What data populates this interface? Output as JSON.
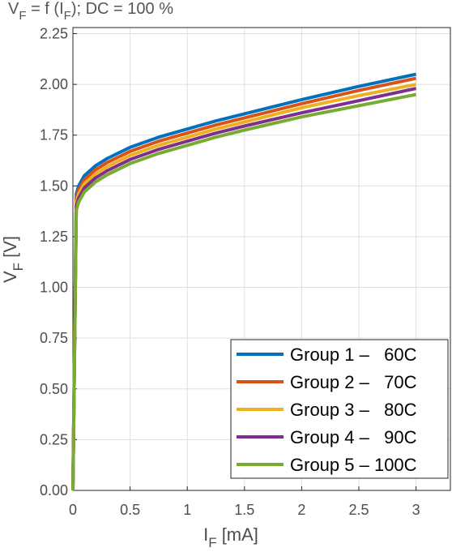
{
  "chart_data": {
    "type": "line",
    "title": "V",
    "title_sub": "F",
    "title_mid": " = f (I",
    "title_sub2": "F",
    "title_end": "); DC = 100 %",
    "xlabel": "I",
    "xlabel_sub": "F",
    "xlabel_unit": " [mA]",
    "ylabel": "V",
    "ylabel_sub": "F",
    "ylabel_unit": " [V]",
    "xlim": [
      0,
      3.3
    ],
    "ylim": [
      0,
      2.28
    ],
    "xticks": [
      0,
      0.5,
      1,
      1.5,
      2,
      2.5,
      3
    ],
    "xtick_labels": [
      "0",
      "0.5",
      "1",
      "1.5",
      "2",
      "2.5",
      "3"
    ],
    "yticks": [
      0,
      0.25,
      0.5,
      0.75,
      1.0,
      1.25,
      1.5,
      1.75,
      2.0,
      2.25
    ],
    "ytick_labels": [
      "0.00",
      "0.25",
      "0.50",
      "0.75",
      "1.00",
      "1.25",
      "1.50",
      "1.75",
      "2.00",
      "2.25"
    ],
    "grid": true,
    "legend_position": "bottom-right",
    "x": [
      0,
      0.03,
      0.05,
      0.1,
      0.2,
      0.3,
      0.5,
      0.75,
      1.0,
      1.25,
      1.5,
      2.0,
      2.5,
      3.0
    ],
    "series": [
      {
        "name": "Group 1 –   60C",
        "color": "#0072BD",
        "values": [
          0,
          1.46,
          1.5,
          1.55,
          1.6,
          1.635,
          1.69,
          1.74,
          1.78,
          1.82,
          1.855,
          1.925,
          1.99,
          2.05
        ]
      },
      {
        "name": "Group 2 –   70C",
        "color": "#D95319",
        "values": [
          0,
          1.44,
          1.48,
          1.53,
          1.58,
          1.615,
          1.67,
          1.72,
          1.76,
          1.8,
          1.835,
          1.905,
          1.97,
          2.03
        ]
      },
      {
        "name": "Group 3 –   80C",
        "color": "#EDB120",
        "values": [
          0,
          1.42,
          1.46,
          1.51,
          1.56,
          1.595,
          1.65,
          1.7,
          1.74,
          1.78,
          1.815,
          1.885,
          1.945,
          2.0
        ]
      },
      {
        "name": "Group 4 –   90C",
        "color": "#7E2F8E",
        "values": [
          0,
          1.4,
          1.44,
          1.49,
          1.54,
          1.575,
          1.63,
          1.68,
          1.72,
          1.76,
          1.795,
          1.86,
          1.92,
          1.98
        ]
      },
      {
        "name": "Group 5 – 100C",
        "color": "#77AC30",
        "values": [
          0,
          1.38,
          1.42,
          1.47,
          1.52,
          1.555,
          1.61,
          1.66,
          1.7,
          1.74,
          1.775,
          1.84,
          1.895,
          1.95
        ]
      }
    ]
  }
}
